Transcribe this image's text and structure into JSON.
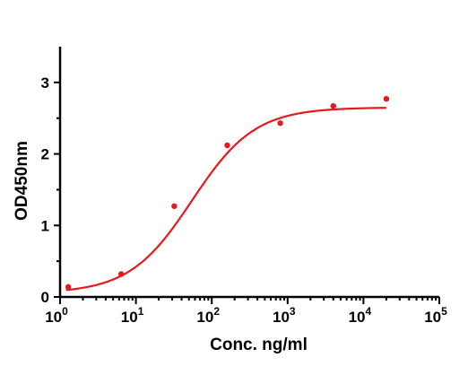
{
  "chart_data": {
    "type": "scatter",
    "title": "",
    "xlabel": "Conc. ng/ml",
    "ylabel": "OD450nm",
    "xscale": "log",
    "xlim": [
      1,
      100000
    ],
    "ylim": [
      0,
      3.5
    ],
    "grid": false,
    "legend": "none",
    "x_ticks": [
      {
        "base": "10",
        "exp": "0",
        "value": 1
      },
      {
        "base": "10",
        "exp": "1",
        "value": 10
      },
      {
        "base": "10",
        "exp": "2",
        "value": 100
      },
      {
        "base": "10",
        "exp": "3",
        "value": 1000
      },
      {
        "base": "10",
        "exp": "4",
        "value": 10000
      },
      {
        "base": "10",
        "exp": "5",
        "value": 100000
      }
    ],
    "y_ticks": [
      {
        "label": "0",
        "value": 0
      },
      {
        "label": "1",
        "value": 1
      },
      {
        "label": "2",
        "value": 2
      },
      {
        "label": "3",
        "value": 3
      }
    ],
    "series": [
      {
        "color": "#e8191c",
        "points": [
          {
            "x": 1.28,
            "y": 0.14
          },
          {
            "x": 6.4,
            "y": 0.32
          },
          {
            "x": 32,
            "y": 1.27
          },
          {
            "x": 160,
            "y": 2.12
          },
          {
            "x": 800,
            "y": 2.43
          },
          {
            "x": 4000,
            "y": 2.67
          },
          {
            "x": 20000,
            "y": 2.77
          }
        ],
        "fit_curve": {
          "model": "4PL",
          "bottom": 0.05,
          "top": 2.65,
          "ec50": 55,
          "hill": 1.05,
          "x_range": [
            1.2,
            20000
          ]
        }
      }
    ]
  }
}
